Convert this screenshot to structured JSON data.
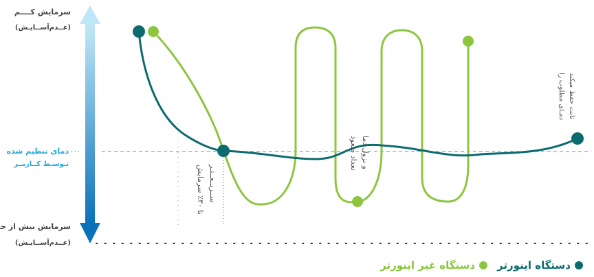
{
  "axis": {
    "top_label": "سرمایش کــــم",
    "top_sub": "(عــدم‌آســایـش)",
    "bottom_label": "سرمایش بیش از حد",
    "bottom_sub": "(عــدم‌آســایـش)",
    "setpoint_line1": "دمای تنظیم شده",
    "setpoint_line2": "تـوسـط کــاربــر"
  },
  "annotations": {
    "fast_cooling_1": "تا ۳۰٪ سرمایش",
    "fast_cooling_2": "ســریــعــتـر",
    "cycles_1": "تعداد صعود",
    "cycles_2": "و نزول دما",
    "stable_1": "دمـای مطلوب را",
    "stable_2": "ثابت حفظ میکند"
  },
  "legend": {
    "inverter": "دستگاه اینورتر",
    "non_inverter": "دستگاه غیر اینورتر"
  },
  "colors": {
    "inverter": "#0b6b6e",
    "non_inverter": "#8cc63f",
    "setpoint": "#1ea7e0",
    "arrow_top": "#b9e4f7",
    "arrow_bottom": "#0a72b8"
  }
}
